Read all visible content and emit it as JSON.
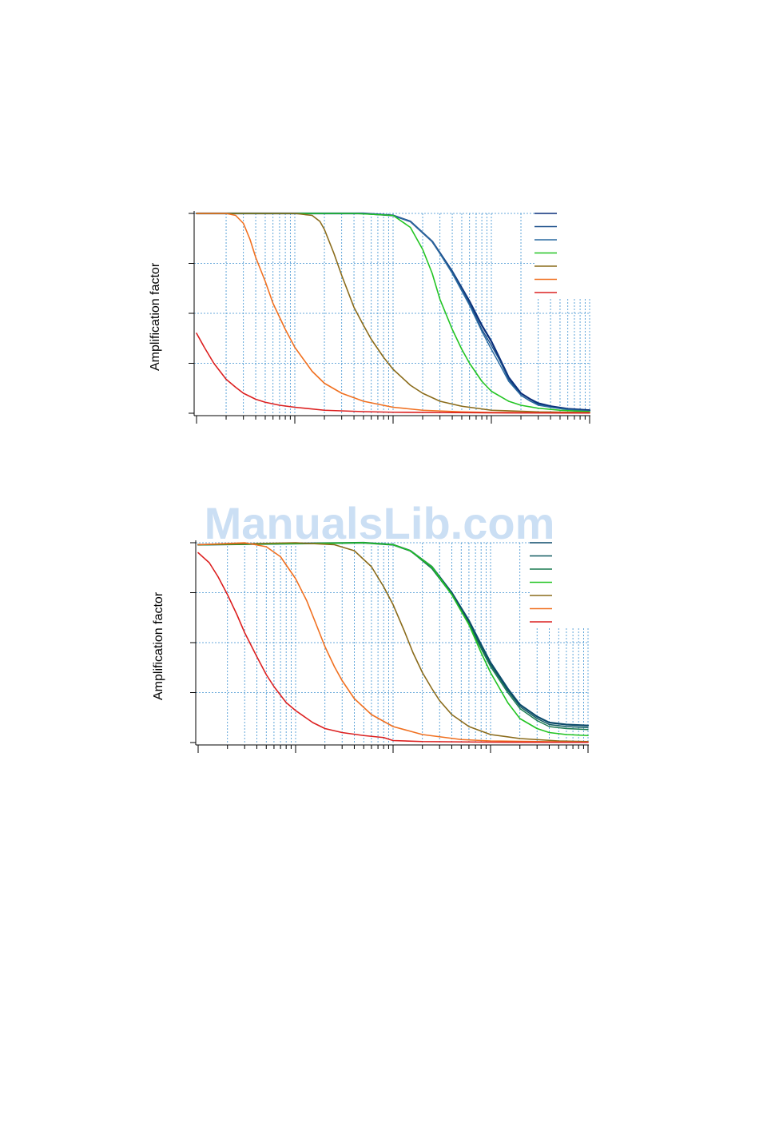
{
  "watermark": "ManualsLib.com",
  "chart_data": [
    {
      "type": "line",
      "xscale": "log",
      "xlim": [
        1,
        10000
      ],
      "ylim": [
        0,
        1
      ],
      "ylabel": "Amplification factor",
      "grid": true,
      "series": [
        {
          "color": "#0a2f7a",
          "width": 2.2,
          "points": [
            [
              1,
              1
            ],
            [
              50,
              1
            ],
            [
              100,
              0.99
            ],
            [
              150,
              0.96
            ],
            [
              250,
              0.86
            ],
            [
              400,
              0.71
            ],
            [
              600,
              0.56
            ],
            [
              800,
              0.44
            ],
            [
              1000,
              0.36
            ],
            [
              1200,
              0.28
            ],
            [
              1500,
              0.18
            ],
            [
              2000,
              0.1
            ],
            [
              2500,
              0.07
            ],
            [
              3000,
              0.05
            ],
            [
              4000,
              0.035
            ],
            [
              6000,
              0.022
            ],
            [
              10000,
              0.015
            ]
          ]
        },
        {
          "color": "#1a4f8a",
          "width": 1.4,
          "points": [
            [
              1,
              1
            ],
            [
              50,
              1
            ],
            [
              100,
              0.99
            ],
            [
              150,
              0.96
            ],
            [
              250,
              0.86
            ],
            [
              400,
              0.71
            ],
            [
              600,
              0.55
            ],
            [
              800,
              0.42
            ],
            [
              1000,
              0.34
            ],
            [
              1200,
              0.27
            ],
            [
              1500,
              0.17
            ],
            [
              2000,
              0.09
            ],
            [
              2500,
              0.06
            ],
            [
              3000,
              0.045
            ],
            [
              4000,
              0.03
            ],
            [
              6000,
              0.02
            ],
            [
              10000,
              0.012
            ]
          ]
        },
        {
          "color": "#2a6aa0",
          "width": 1.4,
          "points": [
            [
              1,
              1
            ],
            [
              50,
              1
            ],
            [
              100,
              0.99
            ],
            [
              150,
              0.96
            ],
            [
              250,
              0.86
            ],
            [
              400,
              0.7
            ],
            [
              600,
              0.54
            ],
            [
              800,
              0.41
            ],
            [
              1000,
              0.32
            ],
            [
              1200,
              0.25
            ],
            [
              1500,
              0.16
            ],
            [
              2000,
              0.09
            ],
            [
              2500,
              0.06
            ],
            [
              3000,
              0.04
            ],
            [
              4000,
              0.03
            ],
            [
              6000,
              0.018
            ],
            [
              10000,
              0.01
            ]
          ]
        },
        {
          "color": "#22c422",
          "width": 1.6,
          "points": [
            [
              1,
              1
            ],
            [
              40,
              1
            ],
            [
              100,
              0.99
            ],
            [
              150,
              0.93
            ],
            [
              200,
              0.82
            ],
            [
              250,
              0.7
            ],
            [
              300,
              0.57
            ],
            [
              400,
              0.42
            ],
            [
              500,
              0.32
            ],
            [
              600,
              0.25
            ],
            [
              800,
              0.16
            ],
            [
              1000,
              0.11
            ],
            [
              1500,
              0.06
            ],
            [
              2000,
              0.04
            ],
            [
              3000,
              0.025
            ],
            [
              5000,
              0.015
            ],
            [
              10000,
              0.008
            ]
          ]
        },
        {
          "color": "#8a6b1a",
          "width": 1.6,
          "points": [
            [
              1,
              1
            ],
            [
              10,
              1
            ],
            [
              15,
              0.99
            ],
            [
              18,
              0.96
            ],
            [
              20,
              0.92
            ],
            [
              25,
              0.8
            ],
            [
              30,
              0.69
            ],
            [
              40,
              0.53
            ],
            [
              50,
              0.44
            ],
            [
              60,
              0.37
            ],
            [
              80,
              0.28
            ],
            [
              100,
              0.22
            ],
            [
              150,
              0.14
            ],
            [
              200,
              0.1
            ],
            [
              300,
              0.06
            ],
            [
              500,
              0.035
            ],
            [
              1000,
              0.015
            ],
            [
              3000,
              0.007
            ],
            [
              10000,
              0.004
            ]
          ]
        },
        {
          "color": "#f07020",
          "width": 1.6,
          "points": [
            [
              1,
              1
            ],
            [
              2,
              1
            ],
            [
              2.5,
              0.99
            ],
            [
              3,
              0.95
            ],
            [
              3.5,
              0.87
            ],
            [
              4,
              0.78
            ],
            [
              5,
              0.66
            ],
            [
              6,
              0.55
            ],
            [
              8,
              0.42
            ],
            [
              10,
              0.33
            ],
            [
              15,
              0.21
            ],
            [
              20,
              0.15
            ],
            [
              30,
              0.1
            ],
            [
              50,
              0.06
            ],
            [
              100,
              0.03
            ],
            [
              200,
              0.015
            ],
            [
              500,
              0.007
            ],
            [
              1000,
              0.004
            ],
            [
              10000,
              0.002
            ]
          ]
        },
        {
          "color": "#dc2020",
          "width": 1.6,
          "points": [
            [
              1,
              0.4
            ],
            [
              1.2,
              0.33
            ],
            [
              1.5,
              0.25
            ],
            [
              2,
              0.17
            ],
            [
              2.5,
              0.13
            ],
            [
              3,
              0.1
            ],
            [
              4,
              0.07
            ],
            [
              5,
              0.055
            ],
            [
              7,
              0.04
            ],
            [
              10,
              0.03
            ],
            [
              20,
              0.015
            ],
            [
              50,
              0.008
            ],
            [
              100,
              0.005
            ],
            [
              1000,
              0.002
            ],
            [
              10000,
              0.001
            ]
          ]
        }
      ]
    },
    {
      "type": "line",
      "xscale": "log",
      "xlim": [
        1,
        10000
      ],
      "ylim": [
        0,
        1
      ],
      "ylabel": "Amplification factor",
      "grid": true,
      "series": [
        {
          "color": "#0b4a6a",
          "width": 2.2,
          "points": [
            [
              1,
              0.99
            ],
            [
              50,
              1
            ],
            [
              100,
              0.99
            ],
            [
              150,
              0.96
            ],
            [
              250,
              0.88
            ],
            [
              400,
              0.75
            ],
            [
              600,
              0.61
            ],
            [
              800,
              0.49
            ],
            [
              1000,
              0.4
            ],
            [
              1500,
              0.27
            ],
            [
              2000,
              0.19
            ],
            [
              3000,
              0.13
            ],
            [
              4000,
              0.1
            ],
            [
              6000,
              0.09
            ],
            [
              10000,
              0.085
            ]
          ]
        },
        {
          "color": "#105a60",
          "width": 1.4,
          "points": [
            [
              1,
              0.99
            ],
            [
              50,
              1
            ],
            [
              100,
              0.99
            ],
            [
              150,
              0.96
            ],
            [
              250,
              0.88
            ],
            [
              400,
              0.75
            ],
            [
              600,
              0.6
            ],
            [
              800,
              0.48
            ],
            [
              1000,
              0.39
            ],
            [
              1500,
              0.26
            ],
            [
              2000,
              0.18
            ],
            [
              3000,
              0.12
            ],
            [
              4000,
              0.09
            ],
            [
              6000,
              0.08
            ],
            [
              10000,
              0.075
            ]
          ]
        },
        {
          "color": "#1a7a50",
          "width": 1.4,
          "points": [
            [
              1,
              0.99
            ],
            [
              50,
              1
            ],
            [
              100,
              0.99
            ],
            [
              150,
              0.96
            ],
            [
              250,
              0.87
            ],
            [
              400,
              0.74
            ],
            [
              600,
              0.59
            ],
            [
              800,
              0.47
            ],
            [
              1000,
              0.38
            ],
            [
              1500,
              0.25
            ],
            [
              2000,
              0.17
            ],
            [
              3000,
              0.11
            ],
            [
              4000,
              0.08
            ],
            [
              6000,
              0.07
            ],
            [
              10000,
              0.065
            ]
          ]
        },
        {
          "color": "#22c422",
          "width": 1.6,
          "points": [
            [
              1,
              0.99
            ],
            [
              50,
              1
            ],
            [
              100,
              0.99
            ],
            [
              150,
              0.96
            ],
            [
              250,
              0.88
            ],
            [
              400,
              0.74
            ],
            [
              600,
              0.59
            ],
            [
              800,
              0.45
            ],
            [
              1000,
              0.35
            ],
            [
              1500,
              0.2
            ],
            [
              2000,
              0.12
            ],
            [
              3000,
              0.07
            ],
            [
              4000,
              0.05
            ],
            [
              6000,
              0.04
            ],
            [
              10000,
              0.035
            ]
          ]
        },
        {
          "color": "#8a6b1a",
          "width": 1.6,
          "points": [
            [
              1,
              0.99
            ],
            [
              10,
              1
            ],
            [
              25,
              0.99
            ],
            [
              40,
              0.96
            ],
            [
              60,
              0.88
            ],
            [
              80,
              0.78
            ],
            [
              100,
              0.69
            ],
            [
              130,
              0.56
            ],
            [
              160,
              0.45
            ],
            [
              200,
              0.35
            ],
            [
              250,
              0.27
            ],
            [
              300,
              0.21
            ],
            [
              400,
              0.14
            ],
            [
              600,
              0.08
            ],
            [
              1000,
              0.04
            ],
            [
              2000,
              0.02
            ],
            [
              5000,
              0.008
            ],
            [
              10000,
              0.005
            ]
          ]
        },
        {
          "color": "#f07020",
          "width": 1.6,
          "points": [
            [
              1,
              0.99
            ],
            [
              3,
              1
            ],
            [
              5,
              0.98
            ],
            [
              7,
              0.93
            ],
            [
              10,
              0.82
            ],
            [
              13,
              0.71
            ],
            [
              16,
              0.6
            ],
            [
              20,
              0.48
            ],
            [
              25,
              0.38
            ],
            [
              30,
              0.31
            ],
            [
              40,
              0.22
            ],
            [
              60,
              0.14
            ],
            [
              100,
              0.08
            ],
            [
              200,
              0.04
            ],
            [
              500,
              0.015
            ],
            [
              1000,
              0.008
            ],
            [
              10000,
              0.002
            ]
          ]
        },
        {
          "color": "#dc2020",
          "width": 1.6,
          "points": [
            [
              1,
              0.95
            ],
            [
              1.3,
              0.9
            ],
            [
              1.6,
              0.83
            ],
            [
              2,
              0.74
            ],
            [
              2.5,
              0.64
            ],
            [
              3,
              0.55
            ],
            [
              4,
              0.43
            ],
            [
              5,
              0.34
            ],
            [
              6,
              0.28
            ],
            [
              8,
              0.2
            ],
            [
              10,
              0.16
            ],
            [
              15,
              0.1
            ],
            [
              20,
              0.07
            ],
            [
              30,
              0.05
            ],
            [
              50,
              0.035
            ],
            [
              80,
              0.025
            ],
            [
              100,
              0.01
            ],
            [
              200,
              0.005
            ],
            [
              1000,
              0.002
            ],
            [
              10000,
              0.001
            ]
          ]
        }
      ]
    }
  ]
}
